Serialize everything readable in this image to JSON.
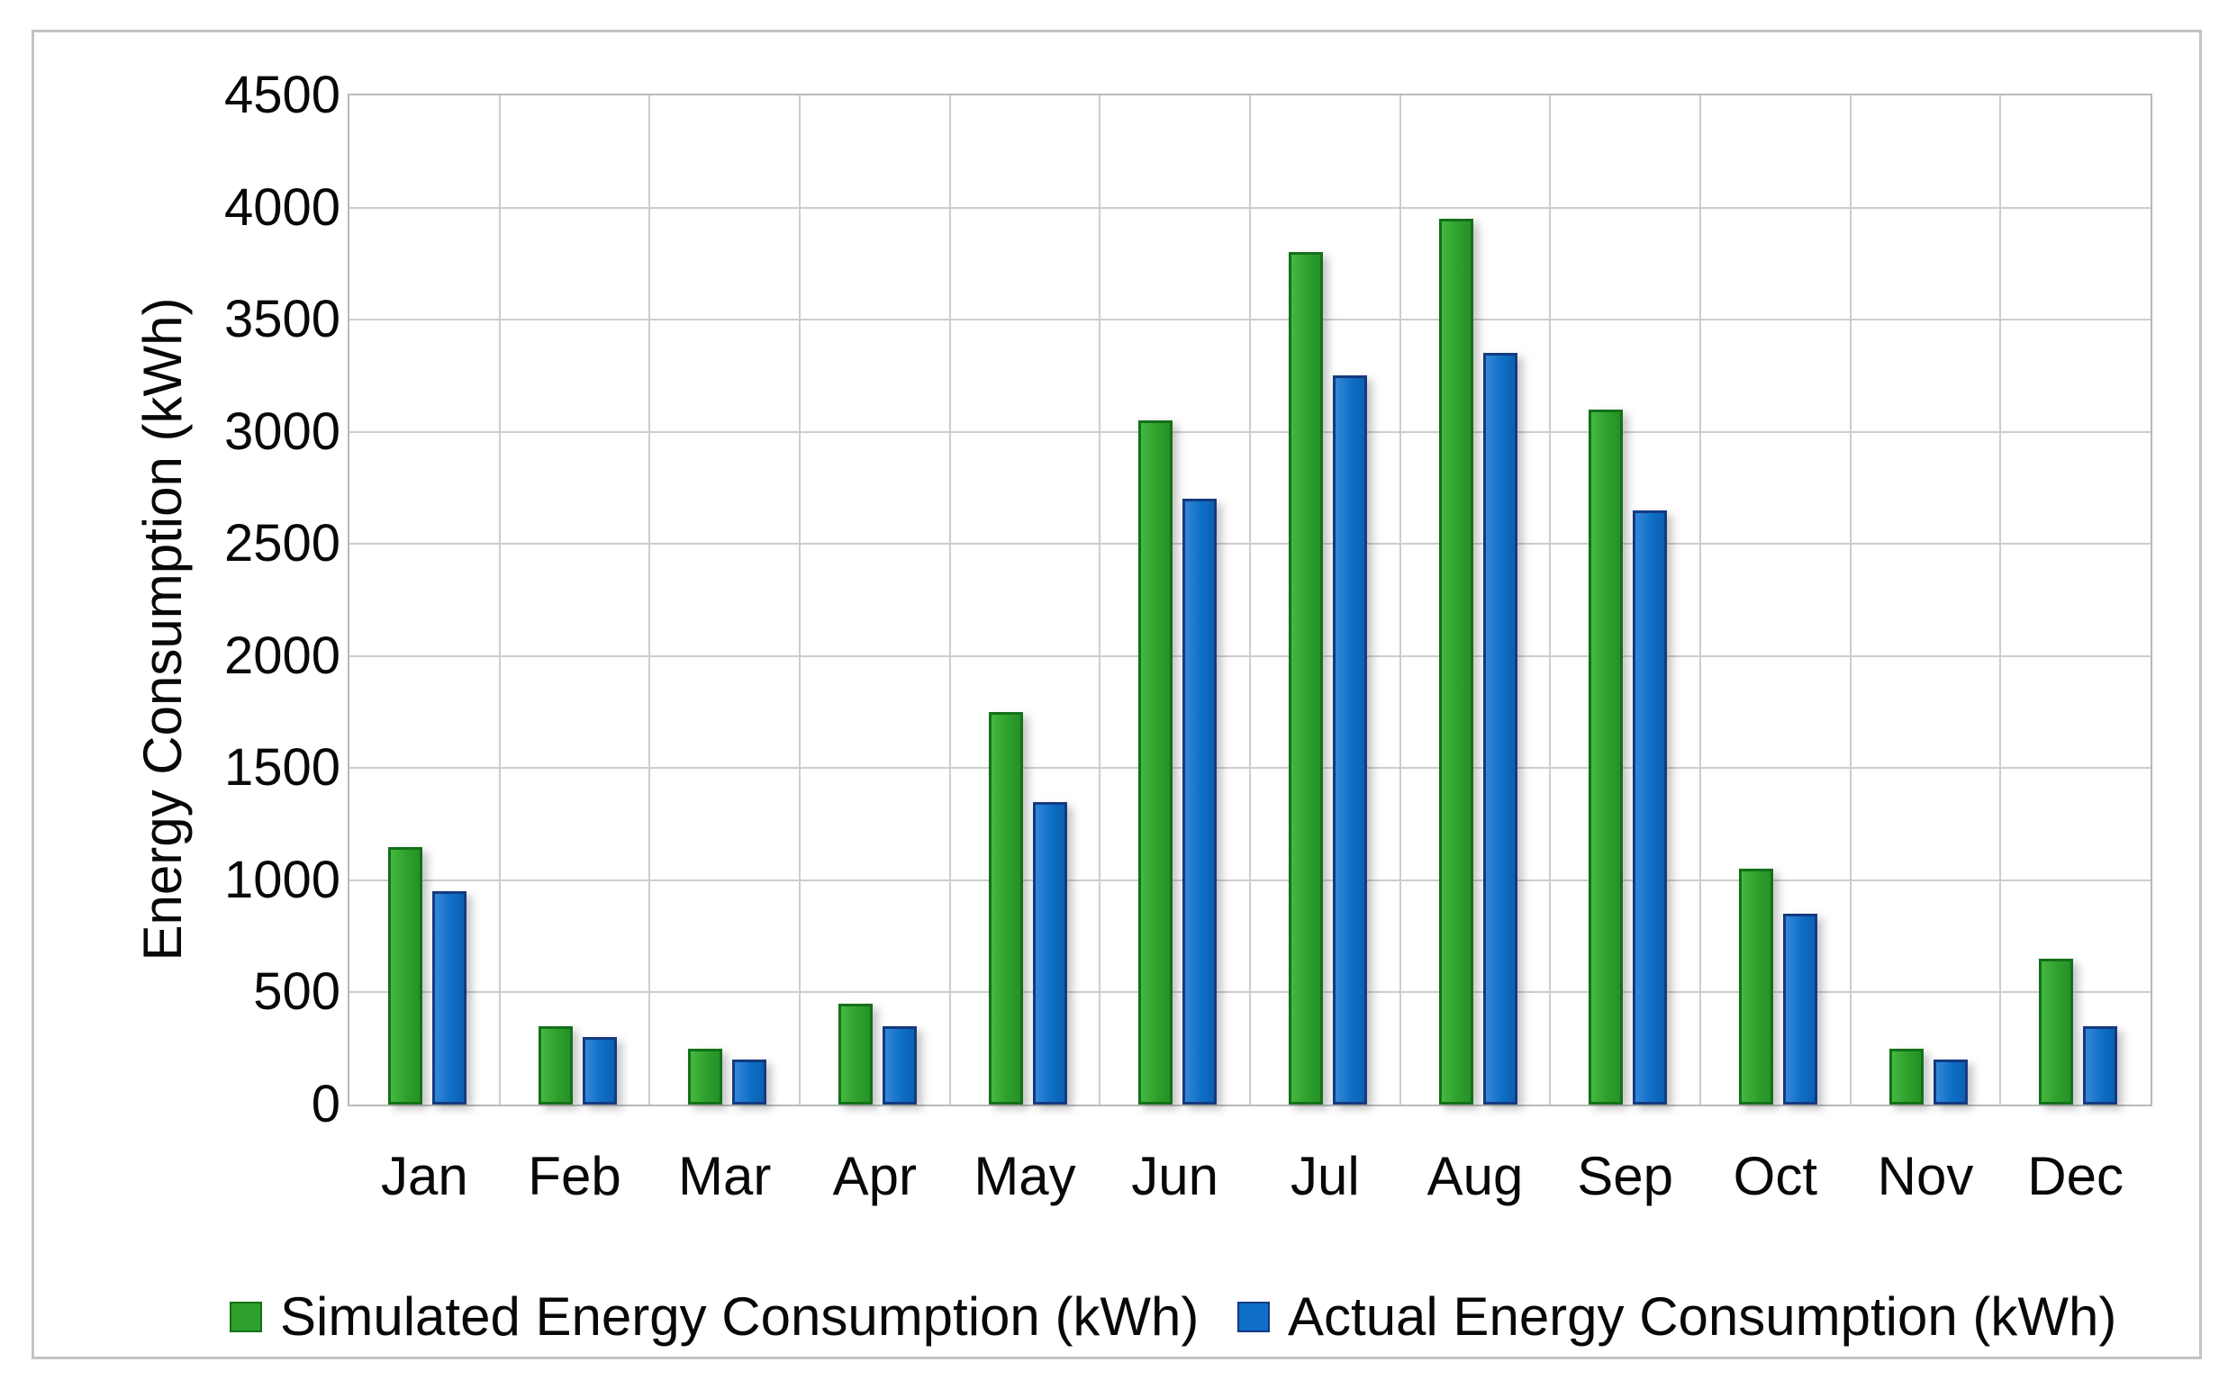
{
  "figure": {
    "background_color": "#ffffff",
    "frame_border_color": "#c3c3c3",
    "gridline_color": "#cdcdcd"
  },
  "chart_data": {
    "type": "bar",
    "title": "",
    "xlabel": "",
    "ylabel": "Energy Consumption (kWh)",
    "ylim": [
      0,
      4500
    ],
    "ytick_step": 500,
    "yticks": [
      0,
      500,
      1000,
      1500,
      2000,
      2500,
      3000,
      3500,
      4000,
      4500
    ],
    "grid": true,
    "legend_position": "bottom",
    "categories": [
      "Jan",
      "Feb",
      "Mar",
      "Apr",
      "May",
      "Jun",
      "Jul",
      "Aug",
      "Sep",
      "Oct",
      "Nov",
      "Dec"
    ],
    "series": [
      {
        "name": "Simulated Energy Consumption (kWh)",
        "color": "#2ea02c",
        "border_color": "#14701a",
        "values": [
          1150,
          350,
          250,
          450,
          1750,
          3050,
          3800,
          3950,
          3100,
          1050,
          250,
          650
        ]
      },
      {
        "name": "Actual Energy Consumption (kWh)",
        "color": "#0f6fc6",
        "border_color": "#153a80",
        "values": [
          950,
          300,
          200,
          350,
          1350,
          2700,
          3250,
          3350,
          2650,
          850,
          200,
          350
        ]
      }
    ]
  }
}
